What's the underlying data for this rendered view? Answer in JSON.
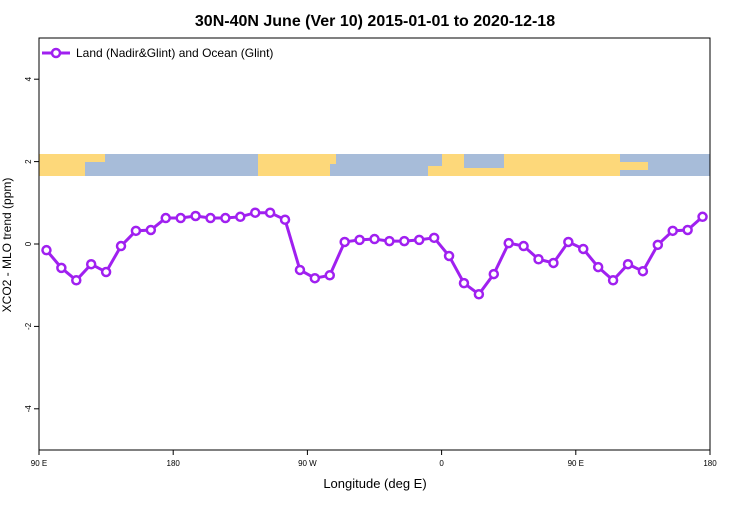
{
  "chart_data": {
    "type": "line",
    "title": "30N-40N June (Ver 10)   2015-01-01 to 2020-12-18",
    "xlabel": "Longitude (deg E)",
    "ylabel": "XCO2 - MLO trend (ppm)",
    "x": [
      95,
      105,
      115,
      125,
      135,
      145,
      155,
      165,
      175,
      185,
      195,
      205,
      215,
      225,
      235,
      245,
      255,
      265,
      275,
      285,
      295,
      305,
      315,
      325,
      335,
      345,
      355,
      365,
      375,
      385,
      395,
      405,
      415,
      425,
      435,
      445,
      455,
      465,
      475,
      485,
      495,
      505,
      515,
      525,
      535
    ],
    "series": [
      {
        "name": "Land (Nadir&Glint) and Ocean (Glint)",
        "color": "#a020f0",
        "values": [
          -0.15,
          -0.58,
          -0.88,
          -0.49,
          -0.68,
          -0.05,
          0.32,
          0.34,
          0.63,
          0.63,
          0.68,
          0.63,
          0.63,
          0.66,
          0.76,
          0.76,
          0.59,
          -0.63,
          -0.83,
          -0.76,
          0.05,
          0.1,
          0.12,
          0.07,
          0.07,
          0.1,
          0.15,
          -0.29,
          -0.95,
          -1.22,
          -0.73,
          0.02,
          -0.05,
          -0.37,
          -0.46,
          0.05,
          -0.12,
          -0.56,
          -0.88,
          -0.49,
          -0.66,
          -0.02,
          0.32,
          0.34,
          0.66
        ]
      }
    ],
    "xlim": [
      90,
      540
    ],
    "xticks": [
      {
        "value": 90,
        "label": "90 E"
      },
      {
        "value": 180,
        "label": "180"
      },
      {
        "value": 270,
        "label": "90 W"
      },
      {
        "value": 360,
        "label": "0"
      },
      {
        "value": 450,
        "label": "90 E"
      },
      {
        "value": 540,
        "label": "180"
      }
    ],
    "ylim": [
      -5,
      5
    ],
    "yticks": [
      -4,
      -2,
      0,
      2,
      4
    ],
    "legend": "top-left"
  }
}
